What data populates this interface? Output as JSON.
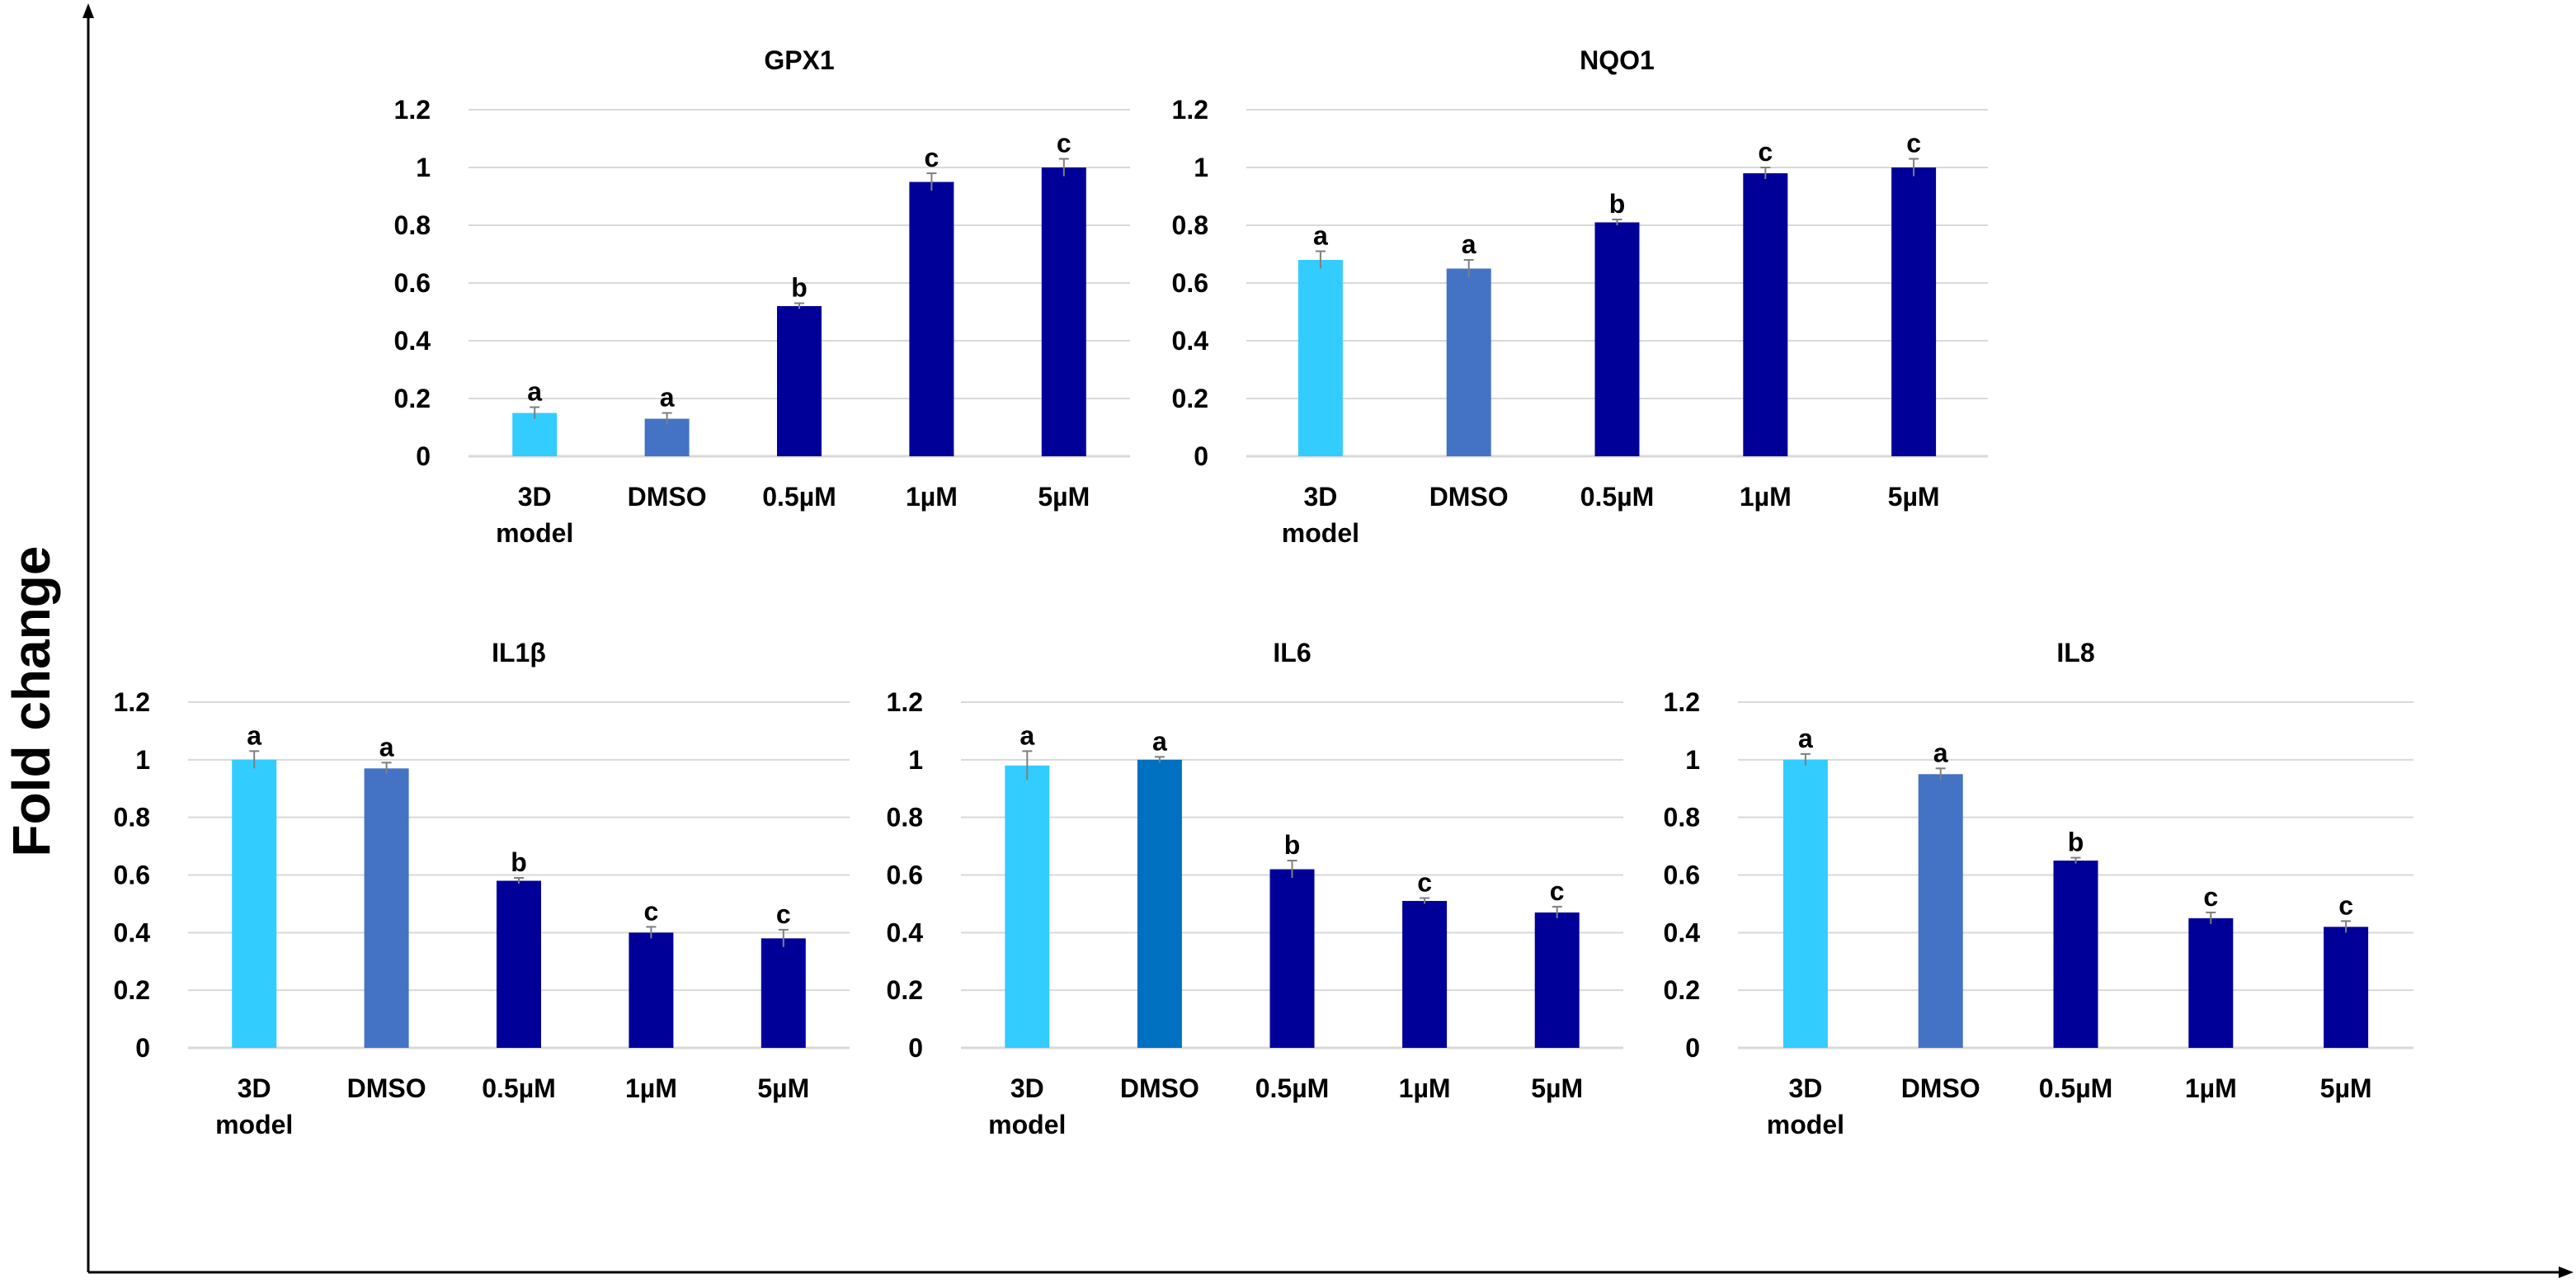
{
  "figure": {
    "ylabel": "Fold change"
  },
  "colors": {
    "light": "#33ccff",
    "mid": "#4472c4",
    "mid_il6": "#0070c0",
    "dark": "#000099",
    "grid": "#d9d9d9",
    "axis": "#000000"
  },
  "chart_data": [
    {
      "id": "gpx1",
      "type": "bar",
      "title": "GPX1",
      "categories": [
        [
          "3D",
          "model"
        ],
        [
          "DMSO"
        ],
        [
          "0.5µM"
        ],
        [
          "1µM"
        ],
        [
          "5µM"
        ]
      ],
      "values": [
        0.15,
        0.13,
        0.52,
        0.95,
        1.0
      ],
      "errors": [
        0.02,
        0.02,
        0.01,
        0.03,
        0.03
      ],
      "labels": [
        "a",
        "a",
        "b",
        "c",
        "c"
      ],
      "colors": [
        "#33ccff",
        "#4472c4",
        "#000099",
        "#000099",
        "#000099"
      ],
      "ylim": [
        0,
        1.2
      ],
      "yticks": [
        "0",
        "0.2",
        "0.4",
        "0.6",
        "0.8",
        "1",
        "1.2"
      ],
      "grid": true
    },
    {
      "id": "nqo1",
      "type": "bar",
      "title": "NQO1",
      "categories": [
        [
          "3D",
          "model"
        ],
        [
          "DMSO"
        ],
        [
          "0.5µM"
        ],
        [
          "1µM"
        ],
        [
          "5µM"
        ]
      ],
      "values": [
        0.68,
        0.65,
        0.81,
        0.98,
        1.0
      ],
      "errors": [
        0.03,
        0.03,
        0.01,
        0.02,
        0.03
      ],
      "labels": [
        "a",
        "a",
        "b",
        "c",
        "c"
      ],
      "colors": [
        "#33ccff",
        "#4472c4",
        "#000099",
        "#000099",
        "#000099"
      ],
      "ylim": [
        0,
        1.2
      ],
      "yticks": [
        "0",
        "0.2",
        "0.4",
        "0.6",
        "0.8",
        "1",
        "1.2"
      ],
      "grid": true
    },
    {
      "id": "il1b",
      "type": "bar",
      "title": "IL1β",
      "categories": [
        [
          "3D",
          "model"
        ],
        [
          "DMSO"
        ],
        [
          "0.5µM"
        ],
        [
          "1µM"
        ],
        [
          "5µM"
        ]
      ],
      "values": [
        1.0,
        0.97,
        0.58,
        0.4,
        0.38
      ],
      "errors": [
        0.03,
        0.02,
        0.01,
        0.02,
        0.03
      ],
      "labels": [
        "a",
        "a",
        "b",
        "c",
        "c"
      ],
      "colors": [
        "#33ccff",
        "#4472c4",
        "#000099",
        "#000099",
        "#000099"
      ],
      "ylim": [
        0,
        1.2
      ],
      "yticks": [
        "0",
        "0.2",
        "0.4",
        "0.6",
        "0.8",
        "1",
        "1.2"
      ],
      "grid": true
    },
    {
      "id": "il6",
      "type": "bar",
      "title": "IL6",
      "categories": [
        [
          "3D",
          "model"
        ],
        [
          "DMSO"
        ],
        [
          "0.5µM"
        ],
        [
          "1µM"
        ],
        [
          "5µM"
        ]
      ],
      "values": [
        0.98,
        1.0,
        0.62,
        0.51,
        0.47
      ],
      "errors": [
        0.05,
        0.01,
        0.03,
        0.01,
        0.02
      ],
      "labels": [
        "a",
        "a",
        "b",
        "c",
        "c"
      ],
      "colors": [
        "#33ccff",
        "#0070c0",
        "#000099",
        "#000099",
        "#000099"
      ],
      "ylim": [
        0,
        1.2
      ],
      "yticks": [
        "0",
        "0.2",
        "0.4",
        "0.6",
        "0.8",
        "1",
        "1.2"
      ],
      "grid": true
    },
    {
      "id": "il8",
      "type": "bar",
      "title": "IL8",
      "categories": [
        [
          "3D",
          "model"
        ],
        [
          "DMSO"
        ],
        [
          "0.5µM"
        ],
        [
          "1µM"
        ],
        [
          "5µM"
        ]
      ],
      "values": [
        1.0,
        0.95,
        0.65,
        0.45,
        0.42
      ],
      "errors": [
        0.02,
        0.02,
        0.01,
        0.02,
        0.02
      ],
      "labels": [
        "a",
        "a",
        "b",
        "c",
        "c"
      ],
      "colors": [
        "#33ccff",
        "#4472c4",
        "#000099",
        "#000099",
        "#000099"
      ],
      "ylim": [
        0,
        1.2
      ],
      "yticks": [
        "0",
        "0.2",
        "0.4",
        "0.6",
        "0.8",
        "1",
        "1.2"
      ],
      "grid": true
    }
  ]
}
